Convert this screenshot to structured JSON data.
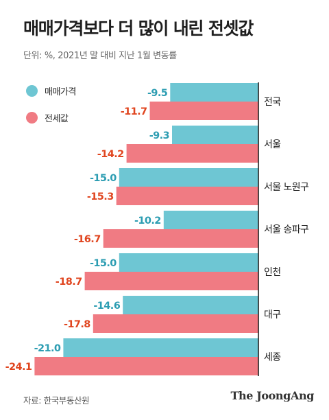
{
  "title": "매매가격보다 더 많이 내린 전셋값",
  "subtitle": "단위: %, 2021년 말 대비 지난 1월 변동률",
  "legend": [
    {
      "label": "매매가격",
      "color": "#6ec6d3"
    },
    {
      "label": "전세값",
      "color": "#f07b83"
    }
  ],
  "footer": {
    "source": "자료: 한국부동산원",
    "brand": "The JoongAng"
  },
  "colors": {
    "sale_bar": "#6ec6d3",
    "jeonse_bar": "#f07b83",
    "sale_label": "#2c9db2",
    "jeonse_label": "#e0451f",
    "baseline": "#222222"
  },
  "chart_data": {
    "type": "bar",
    "orientation": "horizontal",
    "title": "매매가격보다 더 많이 내린 전셋값",
    "subtitle": "단위: %, 2021년 말 대비 지난 1월 변동률",
    "categories": [
      "전국",
      "서울",
      "서울 노원구",
      "서울 송파구",
      "인천",
      "대구",
      "세종"
    ],
    "series": [
      {
        "name": "매매가격",
        "values": [
          -9.5,
          -9.3,
          -15.0,
          -10.2,
          -15.0,
          -14.6,
          -21.0
        ]
      },
      {
        "name": "전세값",
        "values": [
          -11.7,
          -14.2,
          -15.3,
          -16.7,
          -18.7,
          -17.8,
          -24.1
        ]
      }
    ],
    "value_labels": [
      [
        "-9.5",
        "-9.3",
        "-15.0",
        "-10.2",
        "-15.0",
        "-14.6",
        "-21.0"
      ],
      [
        "-11.7",
        "-14.2",
        "-15.3",
        "-16.7",
        "-18.7",
        "-17.8",
        "-24.1"
      ]
    ],
    "xlim": [
      -25,
      0
    ],
    "grid": false,
    "legend_position": "top-left"
  }
}
